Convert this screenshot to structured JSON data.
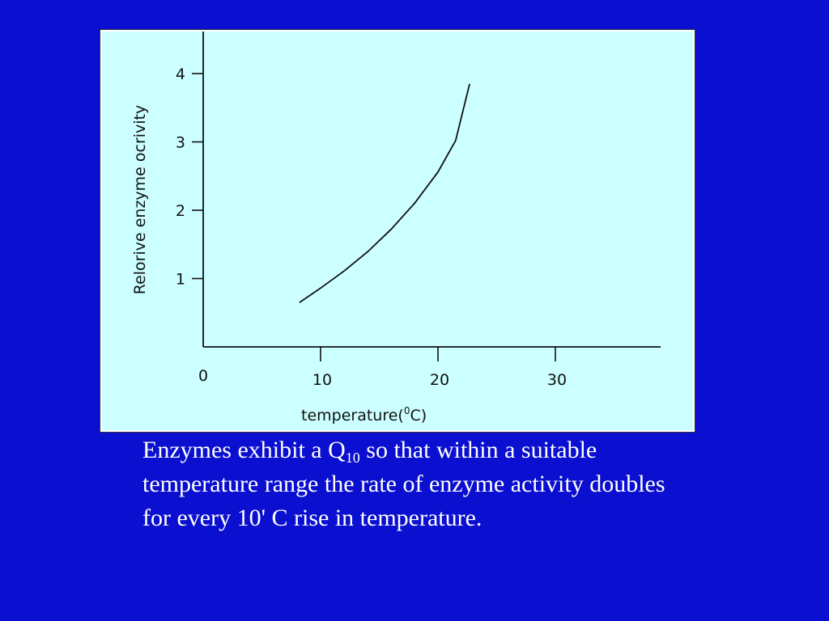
{
  "chart_data": {
    "type": "line",
    "title": "",
    "xlabel_main": "temperature(",
    "xlabel_sup": "0",
    "xlabel_end": "C)",
    "ylabel": "Relorive enzyme ocrivity",
    "xlim": [
      0,
      39
    ],
    "ylim": [
      0,
      4.6
    ],
    "x_ticks": [
      "10",
      "20",
      "30"
    ],
    "x_tick_values": [
      10,
      20,
      30
    ],
    "origin_label": "0",
    "y_ticks": [
      "1",
      "2",
      "3",
      "4"
    ],
    "y_tick_values": [
      1,
      2,
      3,
      4
    ],
    "series": [
      {
        "x": [
          8.2,
          10,
          12,
          14,
          16,
          18,
          20,
          21.5,
          22.7
        ],
        "y": [
          0.65,
          0.86,
          1.11,
          1.39,
          1.72,
          2.1,
          2.56,
          3.02,
          3.85
        ]
      }
    ],
    "grid": false,
    "line_color": "#111111"
  },
  "caption": {
    "part1": "Enzymes exhibit a Q",
    "sub": "10",
    "part2": " so that within a suitable temperature range the rate of enzyme activity doubles for every 10' C rise in temperature."
  }
}
